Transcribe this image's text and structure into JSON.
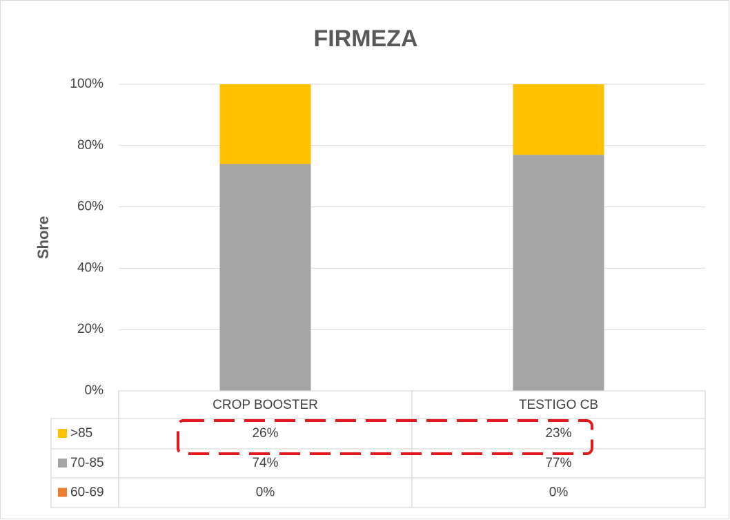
{
  "chart_data": {
    "type": "stacked_bar",
    "title": "FIRMEZA",
    "y_label": "Shore",
    "categories": [
      "CROP BOOSTER",
      "TESTIGO CB"
    ],
    "series": [
      {
        "name": ">85",
        "color": "#ffc000",
        "values": [
          26,
          23
        ],
        "value_labels": [
          "26%",
          "23%"
        ]
      },
      {
        "name": "70-85",
        "color": "#a5a5a5",
        "values": [
          74,
          77
        ],
        "value_labels": [
          "74%",
          "77%"
        ]
      },
      {
        "name": "60-69",
        "color": "#ed7d31",
        "values": [
          0,
          0
        ],
        "value_labels": [
          "0%",
          "0%"
        ]
      }
    ],
    "ylim": [
      0,
      100
    ],
    "yticks": [
      {
        "value": 0,
        "label": "0%"
      },
      {
        "value": 20,
        "label": "20%"
      },
      {
        "value": 40,
        "label": "40%"
      },
      {
        "value": 60,
        "label": "60%"
      },
      {
        "value": 80,
        "label": "80%"
      },
      {
        "value": 100,
        "label": "100%"
      }
    ],
    "grid": true
  }
}
